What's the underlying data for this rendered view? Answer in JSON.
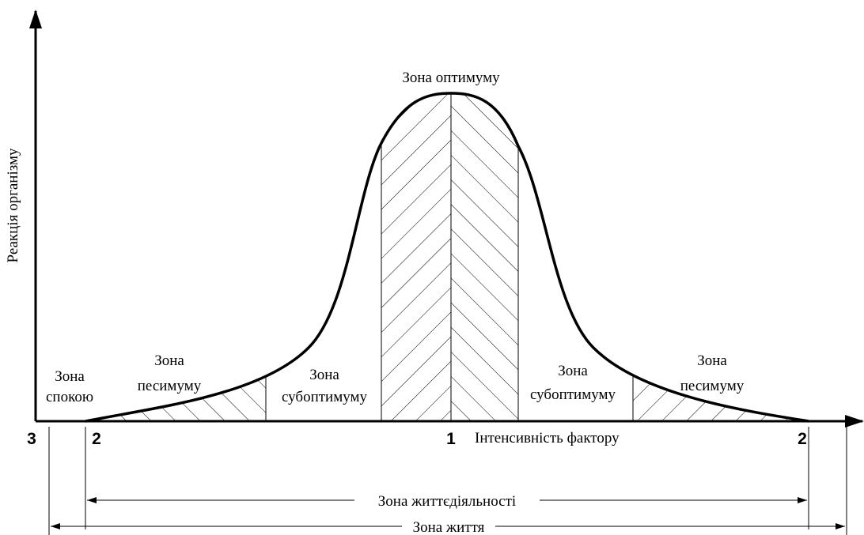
{
  "axes": {
    "y_label": "Реакція організму",
    "x_label": "Інтенсивність фактору"
  },
  "zones": [
    {
      "lines": [
        "Зона",
        "спокою"
      ]
    },
    {
      "lines": [
        "Зона",
        "песимуму"
      ]
    },
    {
      "lines": [
        "Зона",
        "субоптимуму"
      ]
    },
    {
      "lines": [
        "Зона оптимуму"
      ]
    },
    {
      "lines": [
        "Зона",
        "субоптимуму"
      ]
    },
    {
      "lines": [
        "Зона",
        "песимуму"
      ]
    }
  ],
  "points": [
    "3",
    "2",
    "1",
    "2"
  ],
  "spans": [
    "Зона життєдіяльності",
    "Зона життя"
  ]
}
